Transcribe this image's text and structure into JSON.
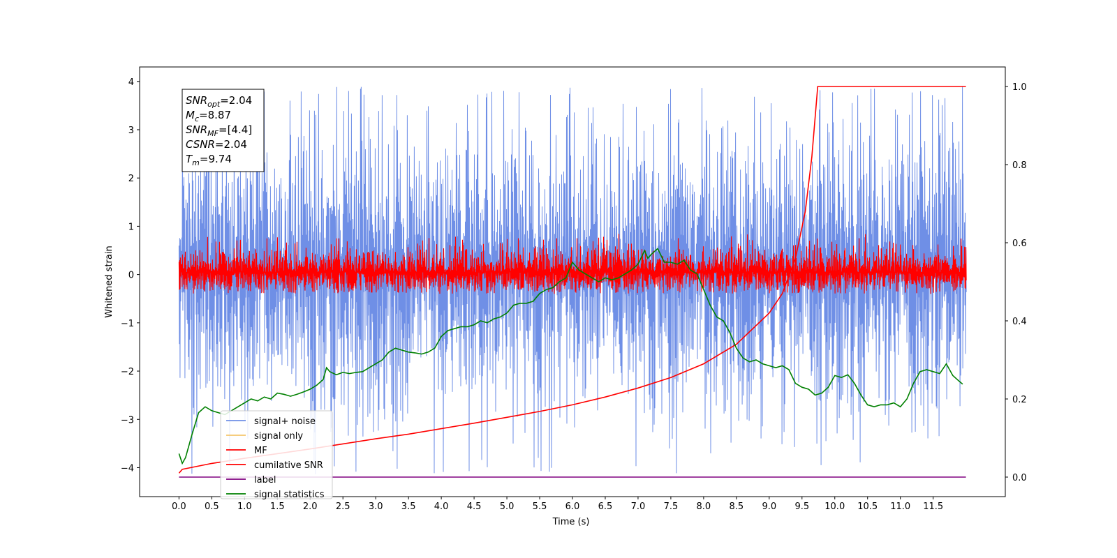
{
  "chart_data": {
    "type": "line",
    "xlabel": "Time (s)",
    "ylabel": "Whitened strain",
    "xlim": [
      -0.6,
      12.6
    ],
    "ylim": [
      -4.6,
      4.3
    ],
    "y2lim": [
      -0.05,
      1.05
    ],
    "xticks": [
      "0.0",
      "0.5",
      "1.0",
      "1.5",
      "2.0",
      "2.5",
      "3.0",
      "3.5",
      "4.0",
      "4.5",
      "5.0",
      "5.5",
      "6.0",
      "6.5",
      "7.0",
      "7.5",
      "8.0",
      "8.5",
      "9.0",
      "9.5",
      "10.0",
      "10.5",
      "11.0",
      "11.5"
    ],
    "yticks": [
      "4",
      "3",
      "2",
      "1",
      "0",
      "−1",
      "−2",
      "−3",
      "−4"
    ],
    "y2ticks": [
      "1.0",
      "0.8",
      "0.6",
      "0.4",
      "0.2",
      "0.0"
    ],
    "grid": false,
    "legend_position": "lower-left",
    "annotation": {
      "lines": [
        {
          "main": "SNR",
          "sub": "opt",
          "rest": "=2.04"
        },
        {
          "main": "M",
          "sub": "c",
          "rest": "=8.87"
        },
        {
          "main": "SNR",
          "sub": "MF",
          "rest": "=[4.4]"
        },
        {
          "main": "CSNR",
          "sub": "",
          "rest": "=2.04"
        },
        {
          "main": "T",
          "sub": "m",
          "rest": "=9.74"
        }
      ]
    },
    "legend": [
      {
        "name": "signal+ noise",
        "color": "#6f8fe6"
      },
      {
        "name": "signal only",
        "color": "#f5c66b"
      },
      {
        "name": "MF",
        "color": "#ff0000"
      },
      {
        "name": "cumilative SNR",
        "color": "#ff0000"
      },
      {
        "name": "label",
        "color": "#800080"
      },
      {
        "name": "signal statistics",
        "color": "#008000"
      }
    ],
    "series": [
      {
        "name": "signal+ noise",
        "axis": "left",
        "style": "noise",
        "x_range": [
          0,
          12.0
        ],
        "approx_range": [
          -2.2,
          2.4
        ],
        "peak_max": 3.9,
        "peak_min": -4.15,
        "color": "#6f8fe6"
      },
      {
        "name": "MF",
        "axis": "left",
        "style": "noise",
        "x_range": [
          0,
          12.0
        ],
        "approx_range": [
          -0.35,
          0.45
        ],
        "peak_max": 0.85,
        "peak_min": -0.4,
        "color": "#ff0000"
      },
      {
        "name": "cumilative SNR",
        "axis": "right",
        "color": "#ff0000",
        "x": [
          0.0,
          0.05,
          0.5,
          1.0,
          1.5,
          2.0,
          2.5,
          3.0,
          3.5,
          4.0,
          4.5,
          5.0,
          5.5,
          6.0,
          6.5,
          7.0,
          7.5,
          8.0,
          8.5,
          9.0,
          9.2,
          9.4,
          9.55,
          9.65,
          9.74,
          12.0
        ],
        "y": [
          0.01,
          0.02,
          0.035,
          0.048,
          0.06,
          0.072,
          0.085,
          0.098,
          0.11,
          0.124,
          0.138,
          0.153,
          0.168,
          0.185,
          0.205,
          0.228,
          0.255,
          0.29,
          0.34,
          0.42,
          0.47,
          0.56,
          0.68,
          0.82,
          1.0,
          1.0
        ]
      },
      {
        "name": "label",
        "axis": "right",
        "color": "#800080",
        "x": [
          0.0,
          12.0
        ],
        "y": [
          0.0,
          0.0
        ]
      },
      {
        "name": "signal statistics",
        "axis": "right",
        "color": "#008000",
        "x": [
          0.0,
          0.05,
          0.1,
          0.2,
          0.3,
          0.4,
          0.5,
          0.6,
          0.7,
          0.8,
          0.9,
          1.0,
          1.1,
          1.2,
          1.3,
          1.4,
          1.5,
          1.6,
          1.7,
          1.8,
          1.9,
          2.0,
          2.1,
          2.2,
          2.25,
          2.3,
          2.4,
          2.5,
          2.6,
          2.7,
          2.8,
          2.9,
          3.0,
          3.1,
          3.2,
          3.3,
          3.4,
          3.5,
          3.6,
          3.7,
          3.8,
          3.9,
          4.0,
          4.1,
          4.2,
          4.3,
          4.4,
          4.5,
          4.6,
          4.7,
          4.8,
          4.9,
          5.0,
          5.1,
          5.2,
          5.3,
          5.4,
          5.5,
          5.6,
          5.7,
          5.8,
          5.9,
          6.0,
          6.1,
          6.2,
          6.3,
          6.4,
          6.5,
          6.6,
          6.7,
          6.8,
          6.9,
          7.0,
          7.1,
          7.15,
          7.2,
          7.3,
          7.4,
          7.5,
          7.6,
          7.7,
          7.8,
          7.9,
          8.0,
          8.1,
          8.2,
          8.3,
          8.4,
          8.5,
          8.6,
          8.7,
          8.8,
          8.9,
          9.0,
          9.1,
          9.2,
          9.3,
          9.4,
          9.5,
          9.6,
          9.7,
          9.8,
          9.9,
          10.0,
          10.1,
          10.2,
          10.3,
          10.4,
          10.5,
          10.6,
          10.7,
          10.8,
          10.9,
          11.0,
          11.1,
          11.2,
          11.3,
          11.4,
          11.5,
          11.6,
          11.7,
          11.8,
          11.9,
          11.95
        ],
        "y": [
          0.06,
          0.035,
          0.05,
          0.11,
          0.165,
          0.18,
          0.17,
          0.165,
          0.16,
          0.17,
          0.18,
          0.19,
          0.2,
          0.195,
          0.205,
          0.2,
          0.215,
          0.212,
          0.207,
          0.212,
          0.218,
          0.225,
          0.235,
          0.25,
          0.28,
          0.27,
          0.262,
          0.268,
          0.265,
          0.268,
          0.27,
          0.28,
          0.29,
          0.3,
          0.32,
          0.33,
          0.325,
          0.32,
          0.318,
          0.315,
          0.32,
          0.33,
          0.36,
          0.375,
          0.38,
          0.385,
          0.385,
          0.39,
          0.4,
          0.395,
          0.405,
          0.41,
          0.42,
          0.44,
          0.445,
          0.445,
          0.45,
          0.47,
          0.48,
          0.485,
          0.5,
          0.51,
          0.55,
          0.53,
          0.52,
          0.51,
          0.5,
          0.51,
          0.505,
          0.51,
          0.52,
          0.53,
          0.545,
          0.58,
          0.56,
          0.57,
          0.585,
          0.55,
          0.55,
          0.545,
          0.555,
          0.53,
          0.52,
          0.48,
          0.44,
          0.41,
          0.4,
          0.37,
          0.33,
          0.305,
          0.295,
          0.3,
          0.29,
          0.285,
          0.28,
          0.285,
          0.275,
          0.24,
          0.23,
          0.225,
          0.21,
          0.215,
          0.23,
          0.26,
          0.255,
          0.262,
          0.24,
          0.21,
          0.185,
          0.18,
          0.185,
          0.185,
          0.19,
          0.18,
          0.2,
          0.24,
          0.27,
          0.275,
          0.27,
          0.265,
          0.29,
          0.26,
          0.245,
          0.238
        ]
      }
    ]
  }
}
